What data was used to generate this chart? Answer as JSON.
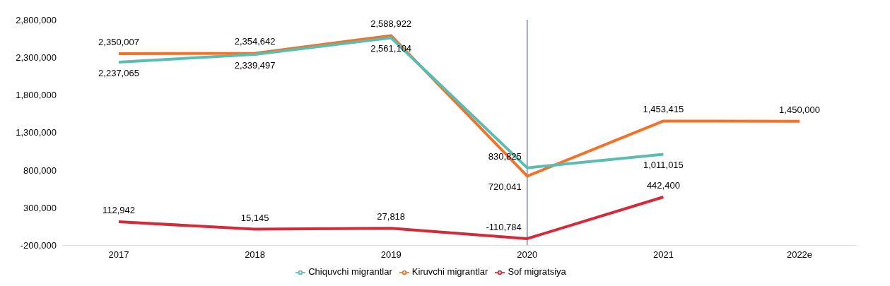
{
  "chart_data": {
    "type": "line",
    "categories": [
      "2017",
      "2018",
      "2019",
      "2020",
      "2021",
      "2022e"
    ],
    "series": [
      {
        "name": "Kiruvchi migrantlar",
        "color": "#f4712a",
        "values": [
          2350007,
          2354642,
          2588922,
          720041,
          1453415,
          1450000
        ],
        "value_labels": [
          "2,350,007",
          "2,354,642",
          "2,588,922",
          "720,041",
          "1,453,415",
          "1,450,000"
        ]
      },
      {
        "name": "Chiquvchi migrantlar",
        "color": "#5bbcb0",
        "values": [
          2237065,
          2339497,
          2561104,
          830825,
          1011015,
          null
        ],
        "value_labels": [
          "2,237,065",
          "2,339,497",
          "2,561,104",
          "830,825",
          "1,011,015",
          null
        ]
      },
      {
        "name": "Sof migratsiya",
        "color": "#d42a3a",
        "values": [
          112942,
          15145,
          27818,
          -110784,
          442400,
          null
        ],
        "value_labels": [
          "112,942",
          "15,145",
          "27,818",
          "-110,784",
          "442,400",
          null
        ]
      }
    ],
    "ylim": [
      -200000,
      2800000
    ],
    "yticks": [
      {
        "value": -200000,
        "label": "-200,000"
      },
      {
        "value": 300000,
        "label": "300,000"
      },
      {
        "value": 800000,
        "label": "800,000"
      },
      {
        "value": 1300000,
        "label": "1,300,000"
      },
      {
        "value": 1800000,
        "label": "1,800,000"
      },
      {
        "value": 2300000,
        "label": "2,300,000"
      },
      {
        "value": 2800000,
        "label": "2,800,000"
      }
    ],
    "ref_lines": [
      {
        "axis": "x",
        "value": "2020",
        "color": "#1f3fbf"
      }
    ],
    "grid": false,
    "legend": "bottom",
    "marker": "none",
    "line_style": "solid"
  }
}
